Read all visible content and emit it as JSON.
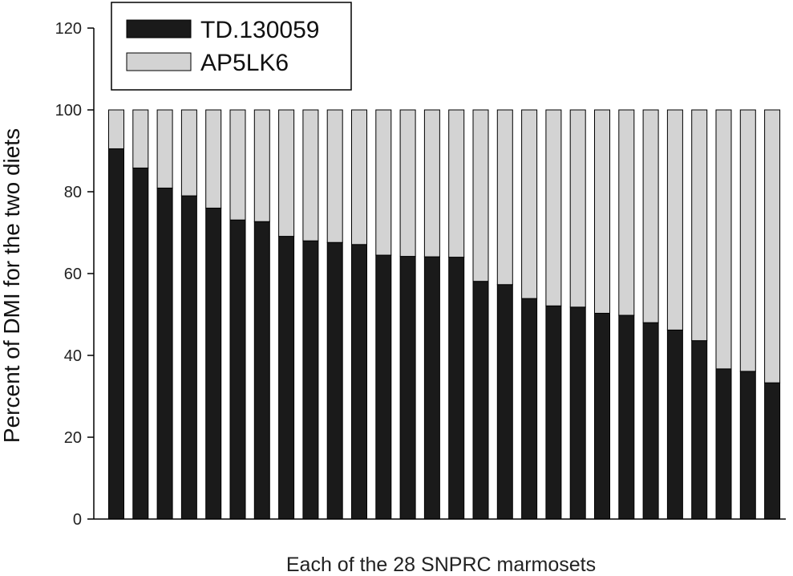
{
  "chart_data": {
    "type": "bar",
    "stacked": true,
    "xlabel": "Each of the 28 SNPRC marmosets",
    "ylabel": "Percent of DMI for the two diets",
    "ylim": [
      0,
      120
    ],
    "yticks": [
      0,
      20,
      40,
      60,
      80,
      100,
      120
    ],
    "grid": false,
    "legend_position": "top-left",
    "series": [
      {
        "name": "TD.130059",
        "color": "#1a1a1a",
        "values": [
          90.5,
          85.8,
          80.9,
          79.0,
          76.0,
          73.1,
          72.7,
          69.1,
          68.0,
          67.6,
          67.1,
          64.5,
          64.2,
          64.1,
          64.0,
          58.1,
          57.3,
          53.9,
          52.1,
          51.8,
          50.3,
          49.8,
          48.0,
          46.2,
          43.6,
          36.7,
          36.1,
          33.3
        ]
      },
      {
        "name": "AP5LK6",
        "color": "#d3d3d3",
        "values": [
          9.5,
          14.2,
          19.1,
          21.0,
          24.0,
          26.9,
          27.3,
          30.9,
          32.0,
          32.4,
          32.9,
          35.5,
          35.8,
          35.9,
          36.0,
          41.9,
          42.7,
          46.1,
          47.9,
          48.2,
          49.7,
          50.2,
          52.0,
          53.8,
          56.4,
          63.3,
          63.9,
          66.7
        ]
      }
    ]
  }
}
